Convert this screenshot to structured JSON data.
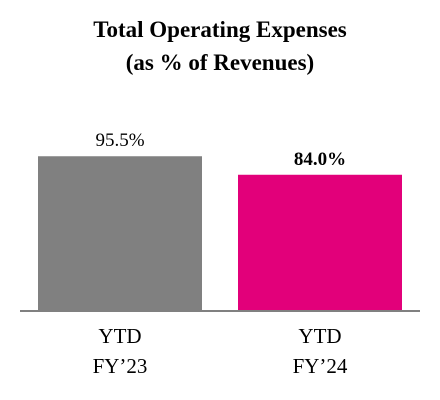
{
  "chart_data": {
    "type": "bar",
    "title": "Total Operating Expenses",
    "subtitle": "(as % of Revenues)",
    "categories": [
      [
        "YTD",
        "FY’23"
      ],
      [
        "YTD",
        "FY’24"
      ]
    ],
    "values": [
      95.5,
      84.0
    ],
    "value_labels": [
      "95.5%",
      "84.0%"
    ],
    "value_label_bold": [
      false,
      true
    ],
    "colors": [
      "#808080",
      "#E2007A"
    ],
    "axis_color": "#808080",
    "ylim": [
      0,
      100
    ],
    "grid": false,
    "legend": "none"
  }
}
